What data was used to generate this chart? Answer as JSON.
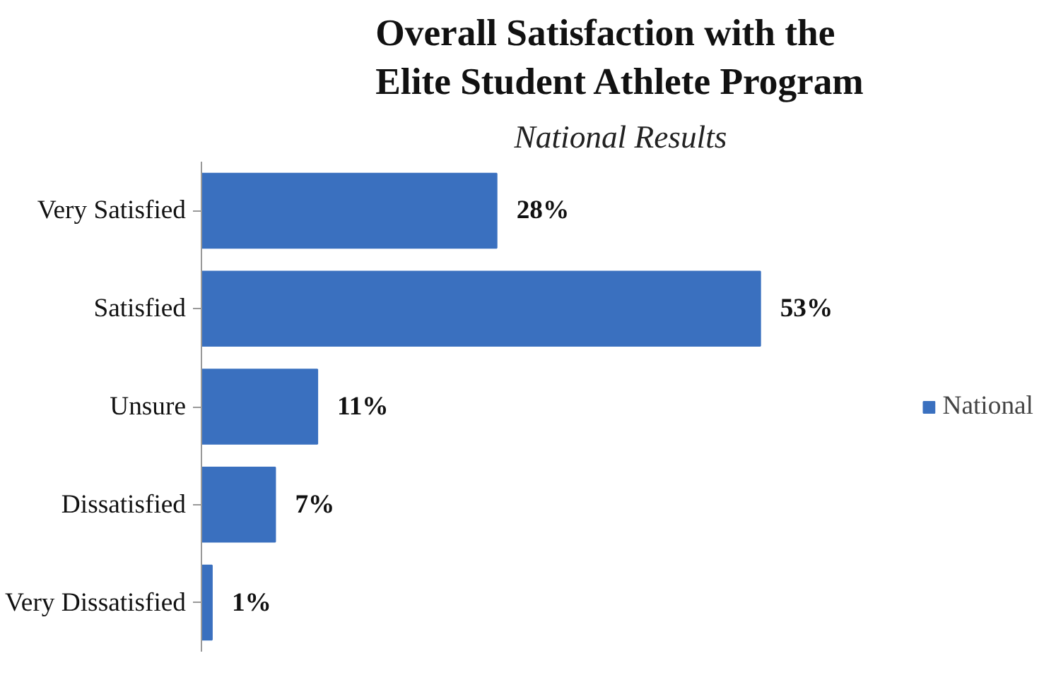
{
  "chart_data": {
    "type": "bar",
    "orientation": "horizontal",
    "title": "Overall Satisfaction with the\nElite Student Athlete Program",
    "subtitle": "National Results",
    "categories": [
      "Very Satisfied",
      "Satisfied",
      "Unsure",
      "Dissatisfied",
      "Very Dissatisfied"
    ],
    "series": [
      {
        "name": "National",
        "color": "#3a70bf",
        "values": [
          28,
          53,
          11,
          7,
          1
        ],
        "value_labels": [
          "28%",
          "53%",
          "11%",
          "7%",
          "1%"
        ]
      }
    ],
    "legend": "right",
    "grid": false
  }
}
